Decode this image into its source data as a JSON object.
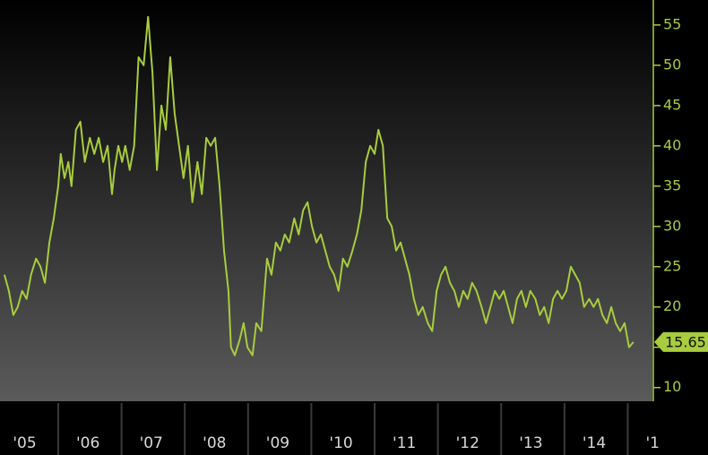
{
  "chart_data": {
    "type": "line",
    "x": [
      2005.15,
      2005.22,
      2005.29,
      2005.36,
      2005.43,
      2005.5,
      2005.57,
      2005.65,
      2005.72,
      2005.79,
      2005.86,
      2005.93,
      2006.0,
      2006.04,
      2006.1,
      2006.16,
      2006.21,
      2006.28,
      2006.35,
      2006.42,
      2006.5,
      2006.57,
      2006.64,
      2006.71,
      2006.78,
      2006.85,
      2006.89,
      2006.95,
      2007.01,
      2007.06,
      2007.13,
      2007.2,
      2007.27,
      2007.35,
      2007.42,
      2007.49,
      2007.56,
      2007.63,
      2007.7,
      2007.77,
      2007.84,
      2007.91,
      2007.98,
      2008.05,
      2008.12,
      2008.2,
      2008.27,
      2008.34,
      2008.41,
      2008.48,
      2008.55,
      2008.62,
      2008.69,
      2008.73,
      2008.79,
      2008.87,
      2008.93,
      2008.99,
      2009.07,
      2009.13,
      2009.21,
      2009.3,
      2009.37,
      2009.44,
      2009.51,
      2009.58,
      2009.65,
      2009.73,
      2009.8,
      2009.87,
      2009.94,
      2010.01,
      2010.08,
      2010.15,
      2010.22,
      2010.29,
      2010.36,
      2010.43,
      2010.5,
      2010.57,
      2010.65,
      2010.72,
      2010.79,
      2010.86,
      2010.93,
      2011.0,
      2011.06,
      2011.13,
      2011.2,
      2011.27,
      2011.34,
      2011.41,
      2011.48,
      2011.55,
      2011.62,
      2011.69,
      2011.76,
      2011.84,
      2011.91,
      2011.98,
      2012.05,
      2012.12,
      2012.19,
      2012.26,
      2012.33,
      2012.4,
      2012.47,
      2012.54,
      2012.61,
      2012.69,
      2012.76,
      2012.83,
      2012.9,
      2012.97,
      2013.04,
      2013.11,
      2013.18,
      2013.25,
      2013.32,
      2013.39,
      2013.46,
      2013.54,
      2013.61,
      2013.68,
      2013.75,
      2013.82,
      2013.89,
      2013.96,
      2014.03,
      2014.1,
      2014.17,
      2014.24,
      2014.31,
      2014.39,
      2014.46,
      2014.53,
      2014.6,
      2014.67,
      2014.74,
      2014.81,
      2014.88,
      2014.95,
      2015.02,
      2015.09
    ],
    "series": [
      {
        "color": "#a8cc3e",
        "values": [
          24,
          22,
          19,
          20,
          22,
          21,
          24,
          26,
          25,
          23,
          28,
          31,
          35,
          39,
          36,
          38,
          35,
          42,
          43,
          38,
          41,
          39,
          41,
          38,
          40,
          34,
          37,
          40,
          38,
          40,
          37,
          40,
          51,
          50,
          56,
          49,
          37,
          45,
          42,
          51,
          44,
          40,
          36,
          40,
          33,
          38,
          34,
          41,
          40,
          41,
          35,
          27,
          22,
          15,
          14,
          16,
          18,
          15,
          14,
          18,
          17,
          26,
          24,
          28,
          27,
          29,
          28,
          31,
          29,
          32,
          33,
          30,
          28,
          29,
          27,
          25,
          24,
          22,
          26,
          25,
          27,
          29,
          32,
          38,
          40,
          39,
          42,
          40,
          31,
          30,
          27,
          28,
          26,
          24,
          21,
          19,
          20,
          18,
          17,
          22,
          24,
          25,
          23,
          22,
          20,
          22,
          21,
          23,
          22,
          20,
          18,
          20,
          22,
          21,
          22,
          20,
          18,
          21,
          22,
          20,
          22,
          21,
          19,
          20,
          18,
          21,
          22,
          21,
          22,
          25,
          24,
          23,
          20,
          21,
          20,
          21,
          19,
          18,
          20,
          18,
          17,
          18,
          15,
          15.65
        ]
      }
    ],
    "current_value": 15.65,
    "xlim": [
      2005.08,
      2015.39
    ],
    "xticks": [
      {
        "value": 2005,
        "label": "'05"
      },
      {
        "value": 2006,
        "label": "'06"
      },
      {
        "value": 2007,
        "label": "'07"
      },
      {
        "value": 2008,
        "label": "'08"
      },
      {
        "value": 2009,
        "label": "'09"
      },
      {
        "value": 2010,
        "label": "'10"
      },
      {
        "value": 2011,
        "label": "'11"
      },
      {
        "value": 2012,
        "label": "'12"
      },
      {
        "value": 2013,
        "label": "'13"
      },
      {
        "value": 2014,
        "label": "'14"
      },
      {
        "value": 2015,
        "label": "'1"
      }
    ],
    "ylim": [
      8.3,
      58.1
    ],
    "yticks": [
      10,
      15,
      20,
      25,
      30,
      35,
      40,
      45,
      50,
      55
    ]
  }
}
